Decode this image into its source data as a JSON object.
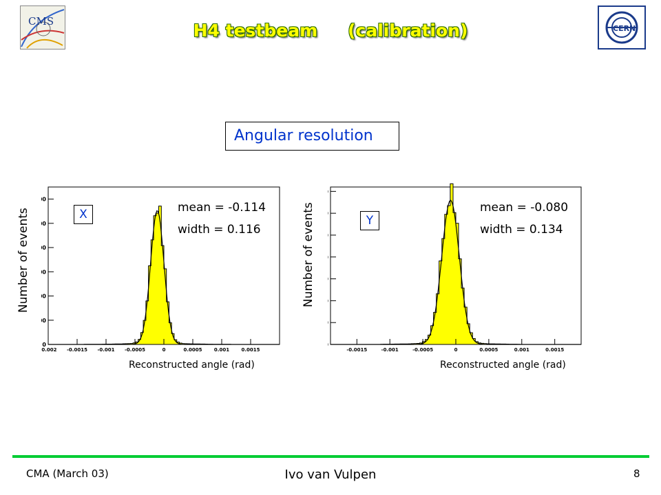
{
  "header": {
    "title_left": "H4 testbeam",
    "title_right": "(calibration)",
    "logo_left": "cms-logo",
    "logo_right": "cern-logo"
  },
  "section_label": "Angular resolution",
  "panels": [
    {
      "tag": "X",
      "mean": "mean = -0.114",
      "width": "width =  0.116",
      "ylabel": "Number of events",
      "xlabel": "Reconstructed angle (rad)"
    },
    {
      "tag": "Y",
      "mean": "mean = -0.080",
      "width": "width =  0.134",
      "ylabel": "Number of events",
      "xlabel": "Reconstructed angle (rad)"
    }
  ],
  "chart_data": [
    {
      "type": "bar",
      "xlabel": "Reconstructed angle (rad)",
      "ylabel": "Number of events",
      "xlim": [
        -0.002,
        0.002
      ],
      "ylim": [
        0,
        1300
      ],
      "x_ticks": [
        "-0.002",
        "-0.0015",
        "-0.001",
        "-0.0005",
        "0",
        "0.0005",
        "0.001",
        "0.0015"
      ],
      "x_tick_values": [
        -0.002,
        -0.0015,
        -0.001,
        -0.0005,
        0,
        0.0005,
        0.001,
        0.0015
      ],
      "y_ticks": [
        "0",
        "200",
        "400",
        "600",
        "800",
        "1000",
        "1200"
      ],
      "y_tick_values": [
        0,
        200,
        400,
        600,
        800,
        1000,
        1200
      ],
      "fill_color": "#ffff00",
      "fit_mean": -0.000114,
      "fit_width": 0.000116,
      "peak": 1140,
      "annotations": [
        "mean = -0.114",
        "width =  0.116"
      ]
    },
    {
      "type": "bar",
      "xlabel": "Reconstructed angle (rad)",
      "ylabel": "Number of events",
      "xlim": [
        -0.0019,
        0.0019
      ],
      "ylim": [
        0,
        720
      ],
      "x_ticks": [
        "-0.0015",
        "-0.001",
        "-0.0005",
        "0",
        "0.0005",
        "0.001",
        "0.0015"
      ],
      "x_tick_values": [
        -0.0015,
        -0.001,
        -0.0005,
        0,
        0.0005,
        0.001,
        0.0015
      ],
      "y_ticks": [
        "0",
        "100",
        "200",
        "300",
        "400",
        "500",
        "600",
        "700"
      ],
      "y_tick_values": [
        0,
        100,
        200,
        300,
        400,
        500,
        600,
        700
      ],
      "fill_color": "#ffff00",
      "fit_mean": -8e-05,
      "fit_width": 0.000134,
      "peak": 680,
      "annotations": [
        "mean = -0.080",
        "width =  0.134"
      ]
    }
  ],
  "footer": {
    "left": "CMA (March 03)",
    "center": "Ivo van Vulpen",
    "page": "8"
  }
}
